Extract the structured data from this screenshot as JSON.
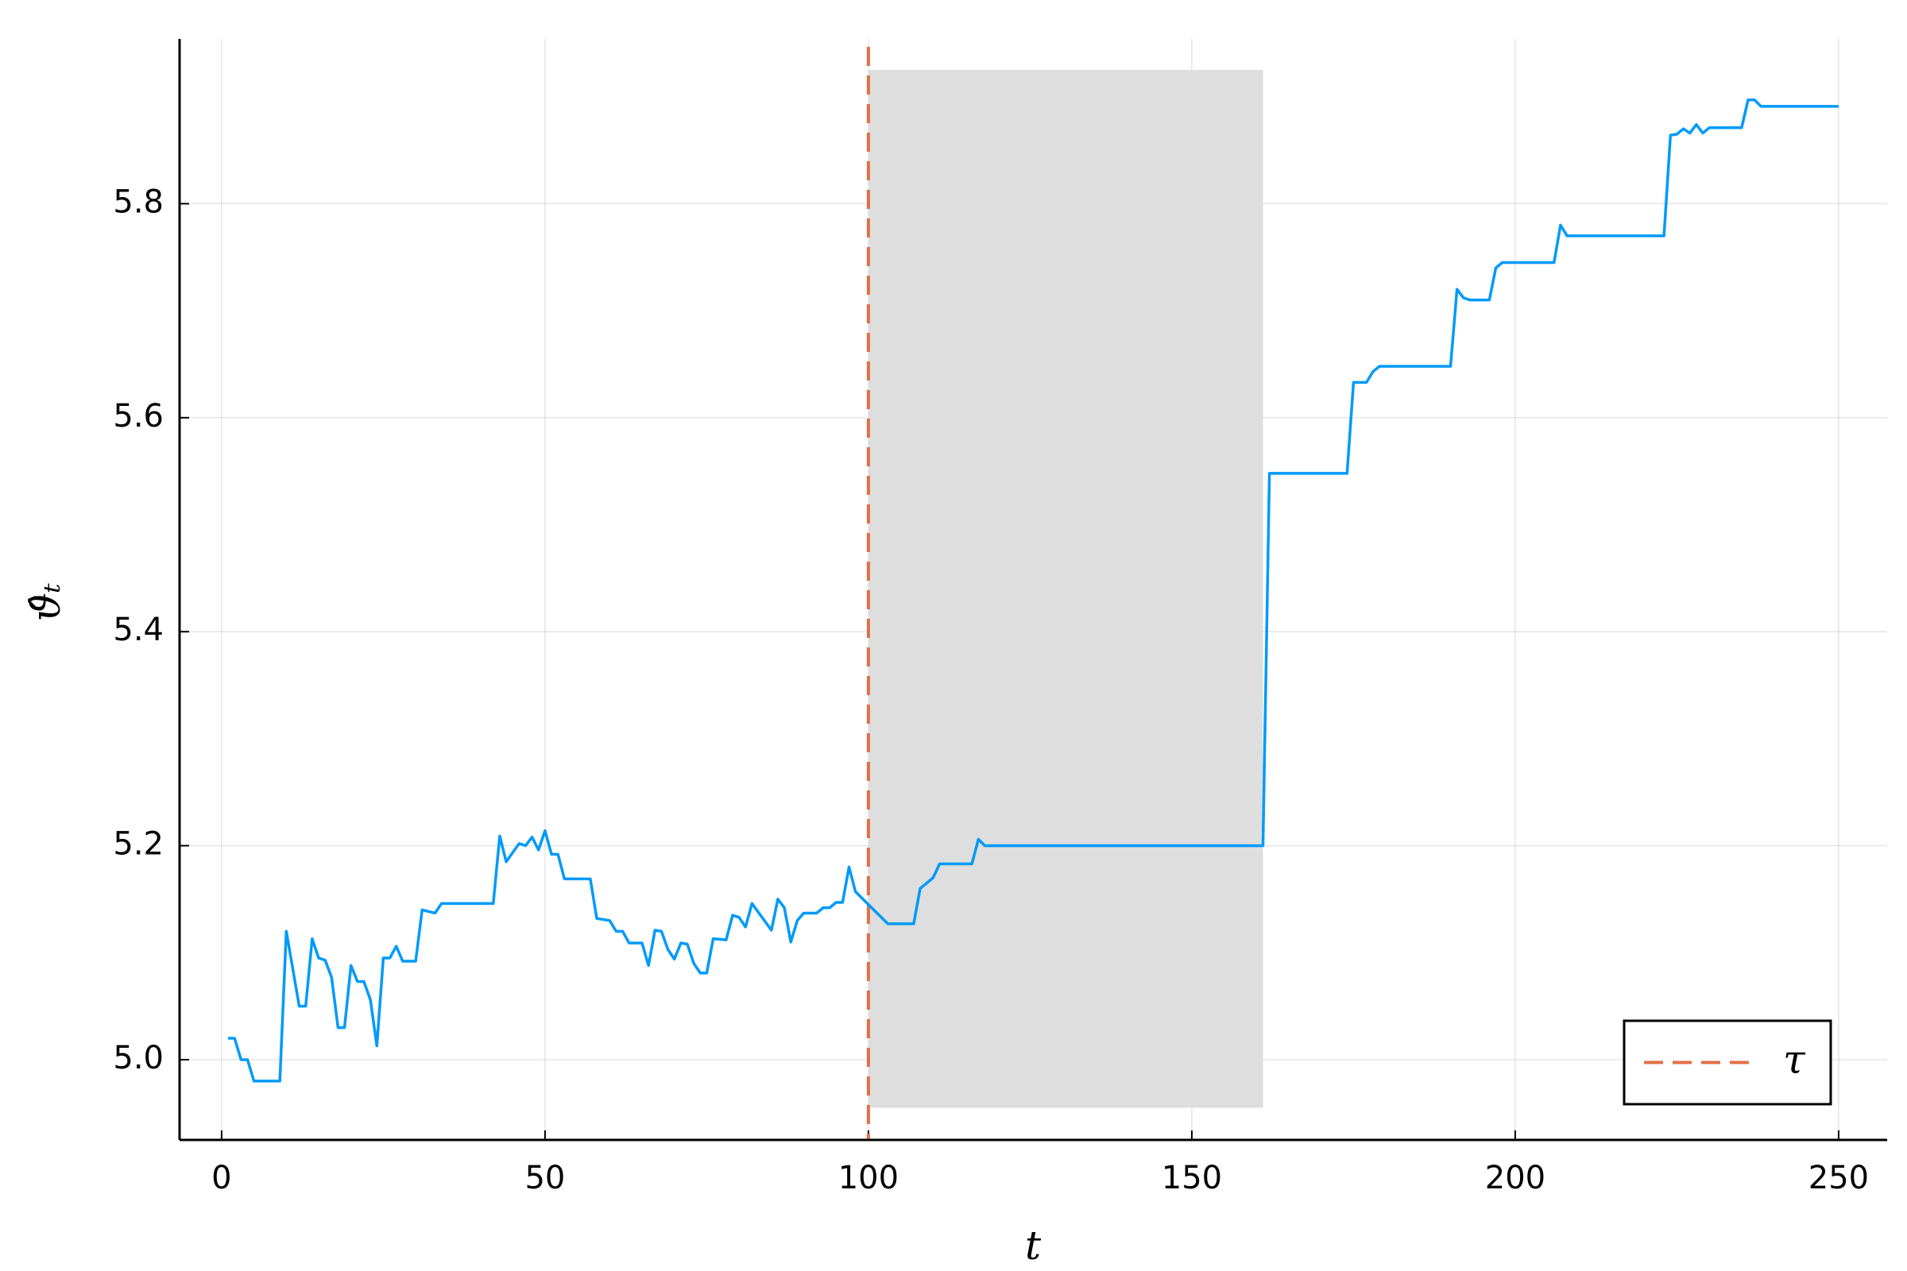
{
  "chart_data": {
    "type": "line",
    "xlabel": "t",
    "ylabel": "ϑ̂ₜ",
    "xlim": [
      -6.5,
      257.5
    ],
    "ylim": [
      4.925,
      5.954
    ],
    "xticks": [
      0,
      50,
      100,
      150,
      200,
      250
    ],
    "yticks": [
      {
        "value": 5.0,
        "label": "5.0"
      },
      5.2,
      5.4,
      5.6,
      5.8
    ],
    "grid": true,
    "legend": "lower right",
    "shade": {
      "x": [
        100,
        161
      ],
      "y": [
        4.955,
        5.925
      ],
      "color": "#dedede"
    },
    "vline": {
      "name": "τ",
      "x": 100,
      "color": "#e26f46",
      "dashed": true
    },
    "series": [
      {
        "color": "#009af9",
        "x": [
          1,
          2,
          3,
          4,
          5,
          9,
          10,
          11,
          12,
          13,
          14,
          15,
          16,
          17,
          18,
          19,
          20,
          21,
          22,
          23,
          24,
          25,
          26,
          27,
          28,
          30,
          31,
          33,
          34,
          42,
          43,
          44,
          46,
          47,
          48,
          49,
          50,
          51,
          52,
          53,
          57,
          58,
          60,
          61,
          62,
          63,
          65,
          66,
          67,
          68,
          69,
          70,
          71,
          72,
          73,
          74,
          75,
          76,
          78,
          79,
          80,
          81,
          82,
          85,
          86,
          87,
          88,
          89,
          90,
          92,
          93,
          94,
          95,
          96,
          97,
          98,
          103,
          107,
          108,
          110,
          111,
          116,
          117,
          118,
          161,
          162,
          174,
          175,
          177,
          178,
          179,
          190,
          191,
          192,
          193,
          196,
          197,
          198,
          206,
          207,
          208,
          223,
          224,
          225,
          226,
          227,
          228,
          229,
          230,
          235,
          236,
          237,
          238,
          250
        ],
        "values": [
          5.02,
          5.02,
          5.0,
          5.0,
          4.98,
          4.98,
          5.12,
          5.085,
          5.05,
          5.05,
          5.113,
          5.095,
          5.093,
          5.077,
          5.03,
          5.03,
          5.088,
          5.073,
          5.073,
          5.056,
          5.013,
          5.095,
          5.095,
          5.106,
          5.092,
          5.092,
          5.14,
          5.137,
          5.146,
          5.146,
          5.209,
          5.185,
          5.202,
          5.2,
          5.208,
          5.196,
          5.214,
          5.192,
          5.192,
          5.169,
          5.169,
          5.132,
          5.13,
          5.12,
          5.12,
          5.109,
          5.109,
          5.088,
          5.121,
          5.12,
          5.103,
          5.094,
          5.109,
          5.108,
          5.09,
          5.081,
          5.081,
          5.113,
          5.112,
          5.135,
          5.133,
          5.124,
          5.146,
          5.121,
          5.15,
          5.142,
          5.11,
          5.13,
          5.137,
          5.137,
          5.142,
          5.142,
          5.147,
          5.147,
          5.18,
          5.157,
          5.127,
          5.127,
          5.16,
          5.17,
          5.183,
          5.183,
          5.206,
          5.2,
          5.2,
          5.548,
          5.548,
          5.633,
          5.633,
          5.643,
          5.648,
          5.648,
          5.72,
          5.712,
          5.71,
          5.71,
          5.74,
          5.745,
          5.745,
          5.78,
          5.77,
          5.77,
          5.864,
          5.865,
          5.87,
          5.866,
          5.874,
          5.866,
          5.871,
          5.871,
          5.897,
          5.897,
          5.891,
          5.891
        ]
      }
    ]
  }
}
